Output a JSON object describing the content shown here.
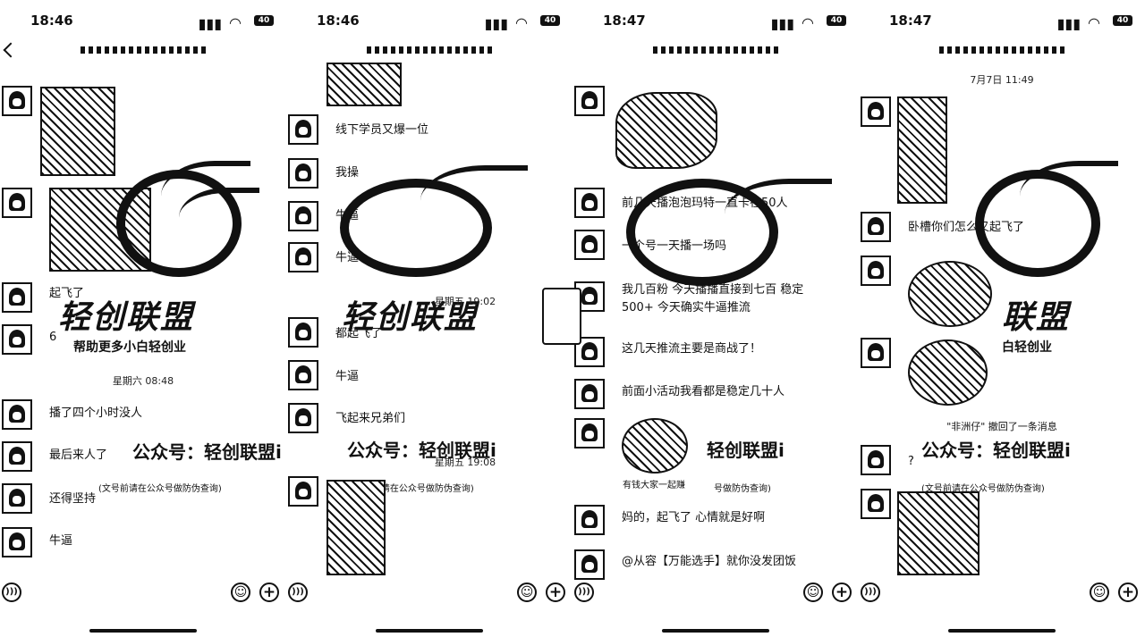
{
  "panels": [
    {
      "time": "18:46",
      "battery": "40",
      "timestamp": "星期六 08:48",
      "messages": [
        "起飞了",
        "6",
        "播了四个小时没人",
        "最后来人了",
        "还得坚持",
        "牛逼"
      ],
      "brand": "轻创联盟",
      "slogan": "帮助更多小白轻创业",
      "public": "公众号：轻创联盟i",
      "note": "(文号前请在公众号做防伪查询)"
    },
    {
      "time": "18:46",
      "battery": "40",
      "timestamps": [
        "星期五 19:02",
        "星期五 19:08"
      ],
      "messages": [
        "线下学员又爆一位",
        "我操",
        "牛逼",
        "牛逼",
        "都起飞了",
        "牛逼",
        "飞起来兄弟们"
      ],
      "brand": "轻创联盟",
      "public": "公众号：轻创联盟i",
      "note": "(文号前请在公众号做防伪查询)"
    },
    {
      "time": "18:47",
      "battery": "40",
      "messages": [
        "前几天播泡泡玛特一直卡在50人",
        "一个号一天播一场吗",
        "我几百粉 今天播播直接到七百 稳定500+ 今天确实牛逼推流",
        "这几天推流主要是商战了！",
        "前面小活动我看都是稳定几十人",
        "妈的，起飞了 心情就是好啊",
        "@从容【万能选手】就你没发团饭"
      ],
      "sticker_caption": "有钱大家一起赚",
      "brand": "轻创联盟",
      "public": "轻创联盟i",
      "note": "号做防伪查询)"
    },
    {
      "time": "18:47",
      "battery": "40",
      "timestamp": "7月7日 11:49",
      "messages": [
        "卧槽你们怎么又起飞了",
        "?"
      ],
      "recall": "\"非洲仔\" 撤回了一条消息",
      "brand": "联盟",
      "slogan": "白轻创业",
      "public": "公众号：轻创联盟i",
      "note": "(文号前请在公众号做防伪查询)"
    }
  ]
}
